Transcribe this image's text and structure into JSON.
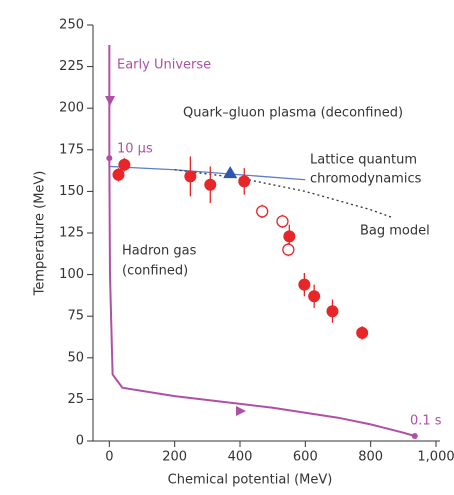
{
  "chart_data": {
    "type": "scatter",
    "xlabel": "Chemical potential (MeV)",
    "ylabel": "Temperature (MeV)",
    "xlim": [
      -50,
      1000
    ],
    "ylim": [
      0,
      250
    ],
    "xticks": [
      0,
      200,
      400,
      600,
      800,
      {
        "value": 1000,
        "label": "1,000"
      }
    ],
    "yticks": [
      0,
      25,
      50,
      75,
      100,
      125,
      150,
      175,
      200,
      225,
      250
    ],
    "annotations": [
      "Early Universe",
      "Quark–gluon plasma (deconfined)",
      "10 µs",
      "Lattice quantum",
      "chromodynamics",
      "Bag model",
      "Hadron gas",
      "(confined)",
      "0.1 s"
    ],
    "lines": [
      {
        "color": "#5b7ec6",
        "style": "solid",
        "x": [
          0,
          200,
          400,
          600
        ],
        "values": [
          165,
          163,
          160,
          157
        ]
      },
      {
        "color": "#333333",
        "style": "dotted",
        "x": [
          200,
          400,
          600,
          800,
          870
        ],
        "values": [
          163,
          158,
          150,
          139,
          134
        ]
      },
      {
        "color": "#b04fa6",
        "style": "solid",
        "x": [
          0,
          0,
          2,
          10,
          40,
          200,
          500,
          700,
          800,
          900,
          935
        ],
        "values": [
          238,
          170,
          100,
          40,
          32,
          27,
          20,
          14,
          10,
          5,
          3
        ]
      }
    ],
    "points": [
      {
        "marker": "filled",
        "color": "#e8262a",
        "x": [
          28,
          46,
          248,
          309,
          413,
          551,
          597,
          627,
          683,
          774
        ],
        "values": [
          160,
          166,
          159,
          154,
          156,
          123,
          94,
          87,
          78,
          65
        ],
        "errors": [
          4,
          4,
          12,
          11,
          8,
          7,
          7,
          7,
          7,
          4
        ]
      },
      {
        "marker": "open",
        "color": "#e8262a",
        "x": [
          468,
          530,
          548
        ],
        "values": [
          138,
          132,
          115
        ],
        "errors": [
          4,
          4,
          4
        ]
      },
      {
        "marker": "triangle",
        "color": "#2f55b0",
        "x": [
          370
        ],
        "values": [
          161
        ],
        "errors": [
          0
        ]
      },
      {
        "marker": "dot",
        "color": "#b04fa6",
        "x": [
          0,
          935
        ],
        "values": [
          170,
          3
        ],
        "errors": [
          0,
          0
        ]
      }
    ]
  }
}
